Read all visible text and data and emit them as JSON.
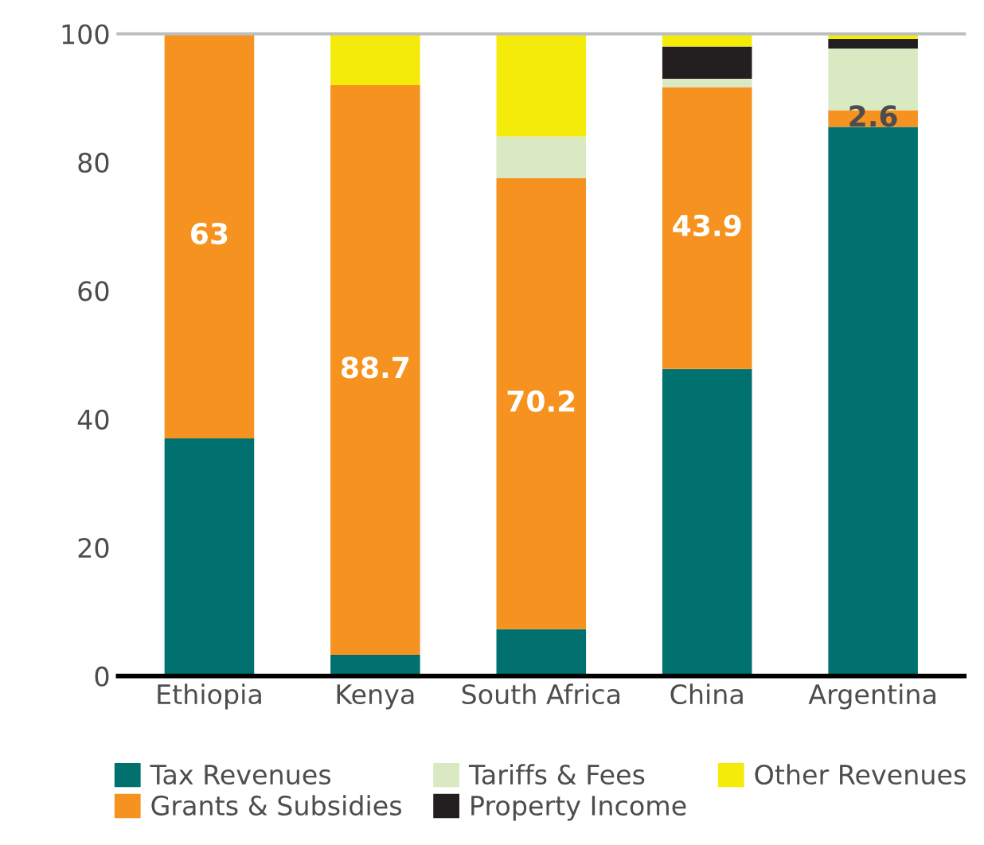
{
  "chart_data": {
    "type": "bar",
    "stacked": true,
    "categories": [
      "Ethiopia",
      "Kenya",
      "South Africa",
      "China",
      "Argentina"
    ],
    "series": [
      {
        "name": "Tax Revenues",
        "color": "#00716e",
        "values": [
          37,
          3.3,
          7.3,
          47.8,
          85.5
        ]
      },
      {
        "name": "Grants & Subsidies",
        "color": "#f69320",
        "values": [
          63,
          88.7,
          70.2,
          43.9,
          2.6
        ],
        "value_labels": [
          "63",
          "88.7",
          "70.2",
          "43.9",
          "2.6"
        ]
      },
      {
        "name": "Tariffs & Fees",
        "color": "#d9e9c1",
        "values": [
          0,
          0,
          6.5,
          1.3,
          9.6
        ]
      },
      {
        "name": "Property Income",
        "color": "#231f20",
        "values": [
          0,
          0,
          0,
          5,
          1.5
        ]
      },
      {
        "name": "Other Revenues",
        "color": "#f5eb0a",
        "values": [
          0,
          8,
          16,
          2,
          0.8
        ]
      }
    ],
    "ylim": [
      0,
      100
    ],
    "yticks": [
      0,
      20,
      40,
      60,
      80,
      100
    ],
    "grid": false,
    "legend": "bottom"
  }
}
